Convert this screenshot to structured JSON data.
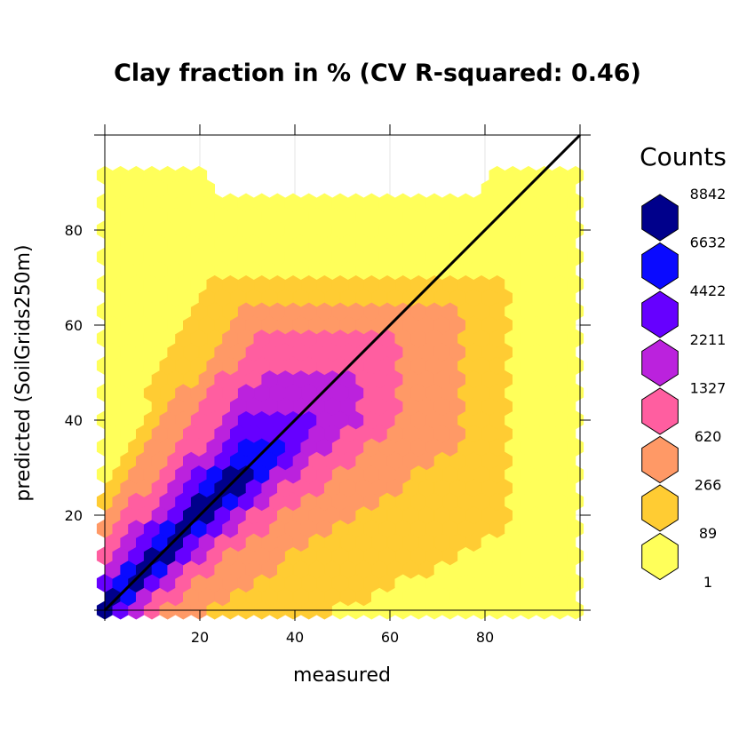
{
  "chart_data": {
    "type": "heatmap",
    "subtype": "hexbin",
    "title": "Clay fraction in %  (CV R-squared: 0.46)",
    "xlabel": "measured",
    "ylabel": "predicted (SoilGrids250m)",
    "xlim": [
      0,
      100
    ],
    "ylim": [
      0,
      100
    ],
    "x_ticks": [
      20,
      40,
      60,
      80
    ],
    "y_ticks": [
      20,
      40,
      60,
      80
    ],
    "grid": true,
    "reference_line": {
      "from": [
        0,
        0
      ],
      "to": [
        100,
        100
      ],
      "color": "#000000"
    },
    "legend": {
      "title": "Counts",
      "placement": "right",
      "breaks": [
        "8842",
        "6632",
        "4422",
        "2211",
        "1327",
        "620",
        "266",
        "89",
        "1"
      ],
      "colors": [
        "#00008B",
        "#0A0AFF",
        "#6600FF",
        "#BB22DD",
        "#FF5EA0",
        "#FF9966",
        "#FFCC33",
        "#FFFF5A"
      ]
    },
    "level_colors": [
      "#FFFF5A",
      "#FFCC33",
      "#FF9966",
      "#FF5EA0",
      "#BB22DD",
      "#6600FF",
      "#0A0AFF",
      "#00008B"
    ],
    "levels_description": "count class index 0..7 (0 = 1-89, 7 = 6632-8842)",
    "regions": [
      {
        "level": 0,
        "x": [
          0,
          100
        ],
        "y": [
          0,
          88
        ]
      },
      {
        "level": 0,
        "x": [
          0,
          22
        ],
        "y": [
          0,
          92
        ]
      },
      {
        "level": 0,
        "x": [
          80,
          100
        ],
        "y": [
          0,
          94
        ]
      },
      {
        "level": 1,
        "x": [
          0,
          85
        ],
        "diag_below": 22,
        "diag_above": 28,
        "y": [
          0,
          70
        ]
      },
      {
        "level": 2,
        "x": [
          0,
          75
        ],
        "diag_below": 14,
        "diag_above": 20,
        "y": [
          0,
          65
        ]
      },
      {
        "level": 3,
        "x": [
          0,
          62
        ],
        "diag_below": 9,
        "diag_above": 14,
        "y": [
          0,
          58
        ]
      },
      {
        "level": 4,
        "x": [
          0,
          53
        ],
        "diag_below": 6,
        "diag_above": 9,
        "y": [
          0,
          50
        ]
      },
      {
        "level": 5,
        "x": [
          0,
          44
        ],
        "diag_below": 4,
        "diag_above": 6,
        "y": [
          0,
          42
        ]
      },
      {
        "level": 6,
        "x": [
          0,
          38
        ],
        "diag_below": 2.5,
        "diag_above": 3.5,
        "y": [
          0,
          36
        ]
      },
      {
        "level": 7,
        "x": [
          0,
          30
        ],
        "diag_below": 1.5,
        "diag_above": 2.0,
        "y": [
          0,
          30
        ]
      }
    ]
  }
}
